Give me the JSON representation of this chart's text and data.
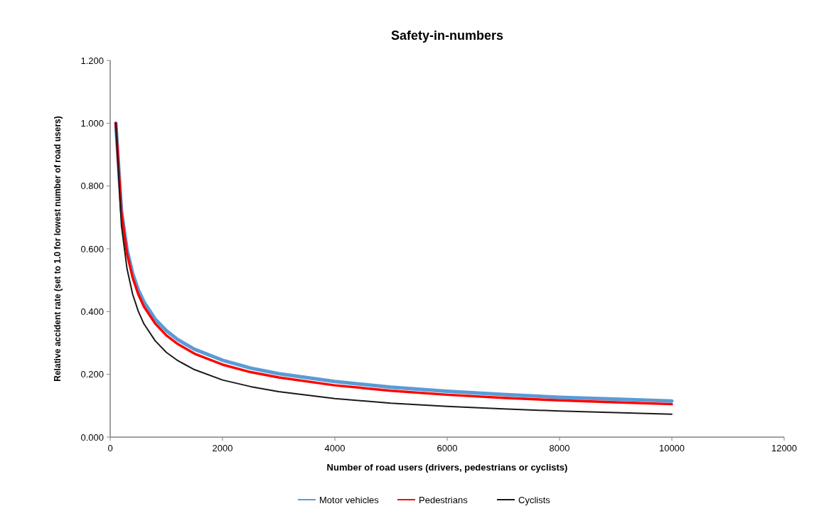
{
  "chart_data": {
    "type": "line",
    "title": "Safety-in-numbers",
    "xlabel": "Number of road users (drivers, pedestrians or cyclists)",
    "ylabel": "Relative accident rate (set to 1.0 for lowest number of road users)",
    "x": [
      100,
      200,
      300,
      400,
      500,
      600,
      800,
      1000,
      1200,
      1500,
      2000,
      2500,
      3000,
      4000,
      5000,
      6000,
      7000,
      8000,
      9000,
      10000
    ],
    "series": [
      {
        "name": "Motor vehicles",
        "color": "#5b9bd5",
        "values": [
          1.0,
          0.722,
          0.597,
          0.521,
          0.469,
          0.431,
          0.376,
          0.339,
          0.311,
          0.28,
          0.245,
          0.22,
          0.202,
          0.177,
          0.159,
          0.146,
          0.136,
          0.127,
          0.121,
          0.115
        ]
      },
      {
        "name": "Pedestrians",
        "color": "#ff0000",
        "values": [
          1.0,
          0.713,
          0.584,
          0.508,
          0.455,
          0.416,
          0.362,
          0.324,
          0.297,
          0.266,
          0.231,
          0.207,
          0.19,
          0.165,
          0.148,
          0.135,
          0.125,
          0.117,
          0.111,
          0.105
        ]
      },
      {
        "name": "Cyclists",
        "color": "#1a1a1a",
        "values": [
          1.0,
          0.674,
          0.536,
          0.455,
          0.401,
          0.361,
          0.307,
          0.27,
          0.244,
          0.215,
          0.182,
          0.161,
          0.145,
          0.123,
          0.108,
          0.098,
          0.09,
          0.083,
          0.078,
          0.073
        ]
      }
    ],
    "xlim": [
      0,
      12000
    ],
    "xticks": [
      0,
      2000,
      4000,
      6000,
      8000,
      10000,
      12000
    ],
    "ylim": [
      0,
      1.2
    ],
    "yticks": [
      {
        "value": 0,
        "label": "0.000"
      },
      {
        "value": 0.2,
        "label": "0.200"
      },
      {
        "value": 0.4,
        "label": "0.400"
      },
      {
        "value": 0.6,
        "label": "0.600"
      },
      {
        "value": 0.8,
        "label": "0.800"
      },
      {
        "value": 1.0,
        "label": "1.000"
      },
      {
        "value": 1.2,
        "label": "1.200"
      }
    ],
    "legend": "bottom",
    "grid": false,
    "marker": "none",
    "line_style": "solid"
  }
}
